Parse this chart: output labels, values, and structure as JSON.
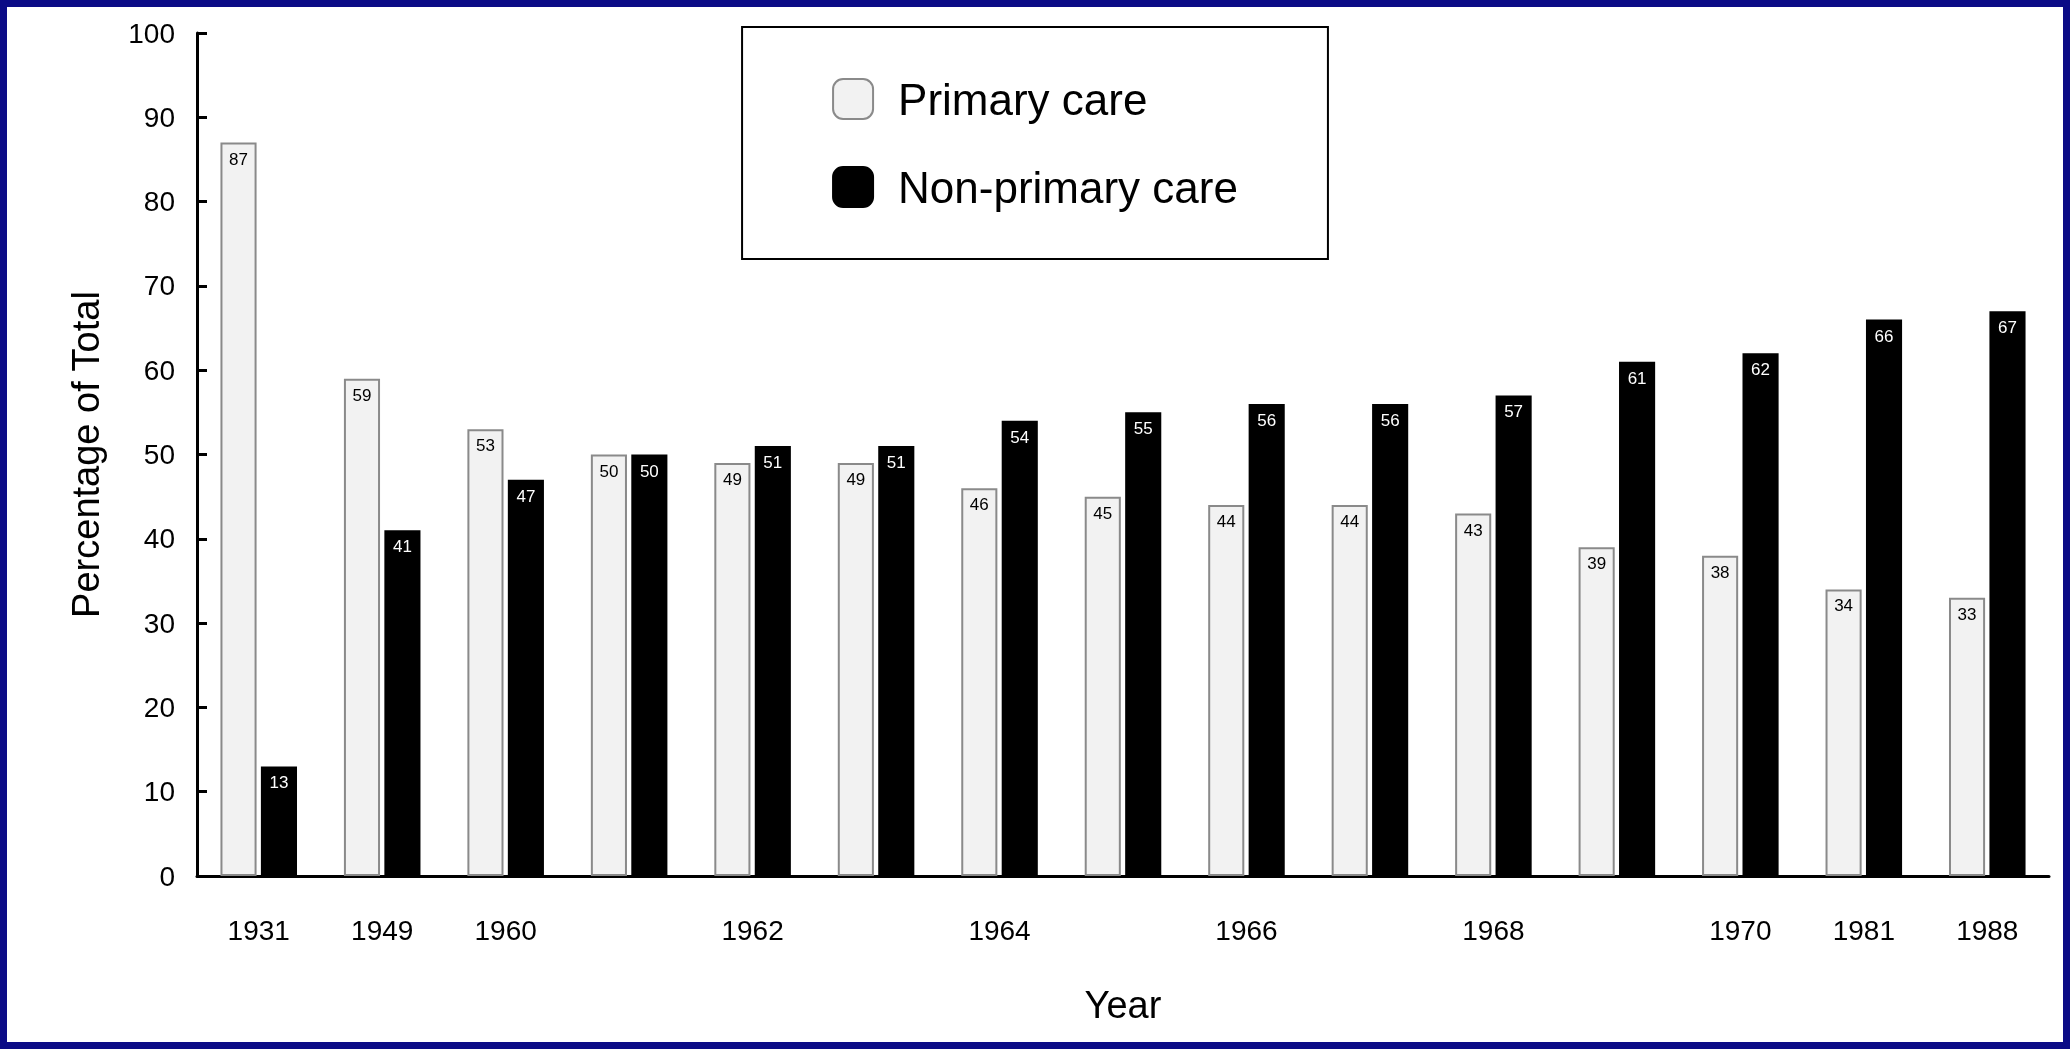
{
  "chart_data": {
    "type": "bar",
    "xlabel": "Year",
    "ylabel": "Percentage of Total",
    "categories": [
      "1931",
      "1949",
      "1960",
      null,
      "1962",
      null,
      "1964",
      null,
      "1966",
      null,
      "1968",
      null,
      "1970",
      "1981",
      "1988"
    ],
    "series": [
      {
        "name": "Primary care",
        "color": "#f2f2f2",
        "values": [
          87,
          59,
          53,
          50,
          49,
          49,
          46,
          45,
          44,
          44,
          43,
          39,
          38,
          34,
          33
        ]
      },
      {
        "name": "Non-primary care",
        "color": "#000000",
        "values": [
          13,
          41,
          47,
          50,
          51,
          51,
          54,
          55,
          56,
          56,
          57,
          61,
          62,
          66,
          67
        ]
      }
    ],
    "ylim": [
      0,
      100
    ],
    "yticks": [
      0,
      10,
      20,
      30,
      40,
      50,
      60,
      70,
      80,
      90,
      100
    ],
    "data_labels": true,
    "legend": "top",
    "grid": false
  }
}
